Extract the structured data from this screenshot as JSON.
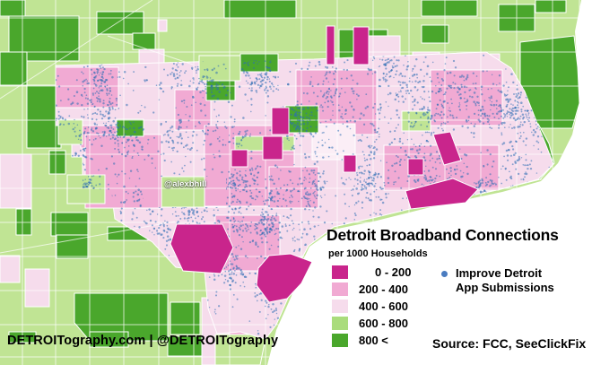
{
  "palette": {
    "magenta": "#c9258c",
    "pink": "#f1aad3",
    "light_pink": "#f6dcec",
    "pale_pink": "#fbeef6",
    "light_green": "#c0e494",
    "dark_green": "#4aa72c",
    "dot_blue": "#2e6db5",
    "water": "#ffffff"
  },
  "map": {
    "watermark": "@alexbhill",
    "attribution": "DETROITography.com | @DETROITography"
  },
  "panel": {
    "title": "Detroit Broadband Connections",
    "subtitle": "per 1000 Households",
    "source": "Source: FCC, SeeClickFix"
  },
  "legend": {
    "items": [
      {
        "label": "0 - 200",
        "color": "#c9258c"
      },
      {
        "label": "200 - 400",
        "color": "#f1aad3"
      },
      {
        "label": "400 - 600",
        "color": "#f6dcec"
      },
      {
        "label": "600 - 800",
        "color": "#aadc7c"
      },
      {
        "label": "800 <",
        "color": "#4aa72c"
      }
    ],
    "point": {
      "label_line1": "Improve Detroit",
      "label_line2": "App Submissions",
      "color": "#4a7cc0"
    }
  }
}
